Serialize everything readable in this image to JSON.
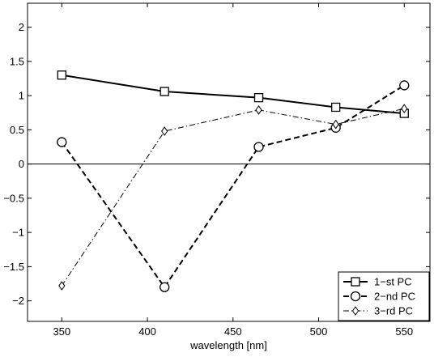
{
  "chart_data": {
    "type": "line",
    "title": "",
    "xlabel": "wavelength [nm]",
    "ylabel": "",
    "xlim": [
      330,
      565
    ],
    "ylim": [
      -2.3,
      2.35
    ],
    "x_ticks": [
      350,
      400,
      450,
      500,
      550
    ],
    "y_ticks": [
      -2,
      -1.5,
      -1,
      -0.5,
      0,
      0.5,
      1,
      1.5,
      2
    ],
    "x_tick_labels": [
      "350",
      "400",
      "450",
      "500",
      "550"
    ],
    "y_tick_labels": [
      "−2",
      "−1.5",
      "−1",
      "−0.5",
      "0",
      "0.5",
      "1",
      "1.5",
      "2"
    ],
    "x": [
      350,
      410,
      465,
      510,
      550
    ],
    "zero_line": true,
    "grid": false,
    "legend_position": "bottom-right",
    "series": [
      {
        "name": "1−st PC",
        "values": [
          1.3,
          1.06,
          0.97,
          0.83,
          0.74
        ],
        "marker": "square",
        "line": "solid",
        "color": "#000000"
      },
      {
        "name": "2−nd PC",
        "values": [
          0.32,
          -1.8,
          0.25,
          0.53,
          1.15
        ],
        "marker": "circle",
        "line": "dashed",
        "color": "#000000"
      },
      {
        "name": "3−rd PC",
        "values": [
          -1.78,
          0.48,
          0.79,
          0.58,
          0.81
        ],
        "marker": "diamond",
        "line": "dashdot",
        "color": "#000000"
      }
    ]
  }
}
